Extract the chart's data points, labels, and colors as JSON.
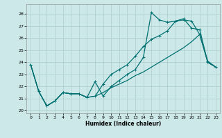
{
  "background_color": "#cce8e8",
  "grid_color": "#b0d0d0",
  "line_color": "#007070",
  "xlim": [
    -0.5,
    23.5
  ],
  "ylim": [
    19.8,
    28.8
  ],
  "yticks": [
    20,
    21,
    22,
    23,
    24,
    25,
    26,
    27,
    28
  ],
  "xticks": [
    0,
    1,
    2,
    3,
    4,
    5,
    6,
    7,
    8,
    9,
    10,
    11,
    12,
    13,
    14,
    15,
    16,
    17,
    18,
    19,
    20,
    21,
    22,
    23
  ],
  "xlabel": "Humidex (Indice chaleur)",
  "line1_x": [
    0,
    1,
    2,
    3,
    4,
    5,
    6,
    7,
    8,
    9,
    10,
    11,
    12,
    13,
    14,
    15,
    16,
    17,
    18,
    19,
    20,
    21,
    22,
    23
  ],
  "line1_y": [
    23.8,
    21.6,
    20.4,
    20.8,
    21.5,
    21.4,
    21.4,
    21.1,
    22.4,
    21.2,
    22.0,
    22.5,
    23.0,
    23.4,
    24.4,
    28.1,
    27.5,
    27.3,
    27.4,
    27.5,
    27.4,
    26.3,
    24.1,
    23.6
  ],
  "line2_x": [
    0,
    1,
    2,
    3,
    4,
    5,
    6,
    7,
    8,
    9,
    10,
    11,
    12,
    13,
    14,
    15,
    16,
    17,
    18,
    19,
    20,
    21,
    22,
    23
  ],
  "line2_y": [
    23.8,
    21.6,
    20.4,
    20.8,
    21.5,
    21.4,
    21.4,
    21.1,
    21.2,
    22.2,
    23.0,
    23.4,
    23.8,
    24.5,
    25.3,
    25.9,
    26.2,
    26.6,
    27.4,
    27.6,
    26.8,
    26.7,
    24.0,
    23.6
  ],
  "line3_x": [
    0,
    1,
    2,
    3,
    4,
    5,
    6,
    7,
    8,
    9,
    10,
    11,
    12,
    13,
    14,
    15,
    16,
    17,
    18,
    19,
    20,
    21,
    22,
    23
  ],
  "line3_y": [
    23.8,
    21.6,
    20.4,
    20.8,
    21.5,
    21.4,
    21.4,
    21.1,
    21.2,
    21.5,
    21.9,
    22.2,
    22.5,
    22.9,
    23.2,
    23.6,
    24.0,
    24.4,
    24.8,
    25.2,
    25.7,
    26.3,
    24.0,
    23.6
  ]
}
